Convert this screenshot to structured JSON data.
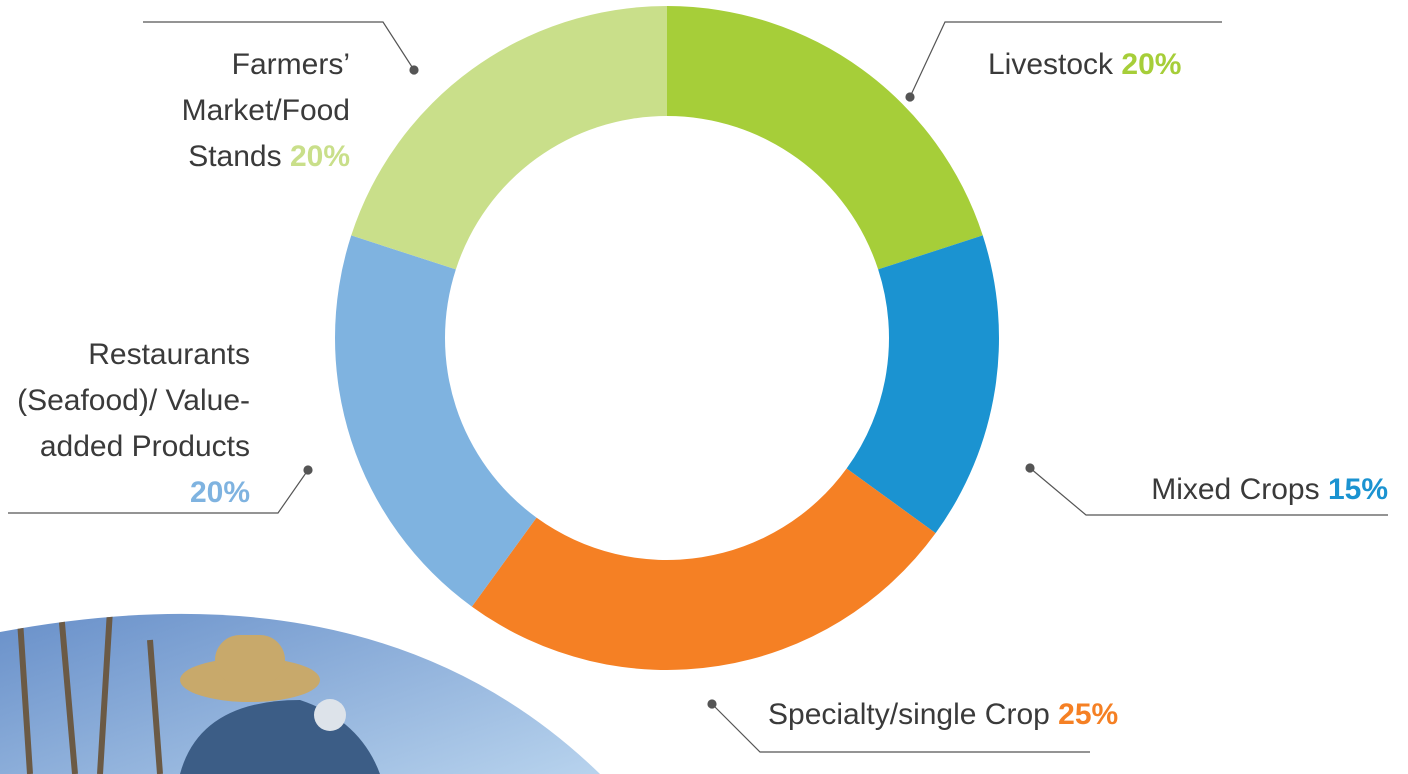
{
  "chart_data": {
    "type": "donut",
    "categories": [
      "Livestock",
      "Mixed Crops",
      "Specialty/single Crop",
      "Restaurants (Seafood)/ Value-added Products",
      "Farmers’ Market/Food Stands"
    ],
    "values": [
      20,
      15,
      25,
      20,
      20
    ],
    "value_labels": [
      "20%",
      "15%",
      "25%",
      "20%",
      "20%"
    ],
    "colors": [
      "#a6ce39",
      "#1b93d1",
      "#f58024",
      "#7fb3e0",
      "#c9df8a"
    ]
  }
}
